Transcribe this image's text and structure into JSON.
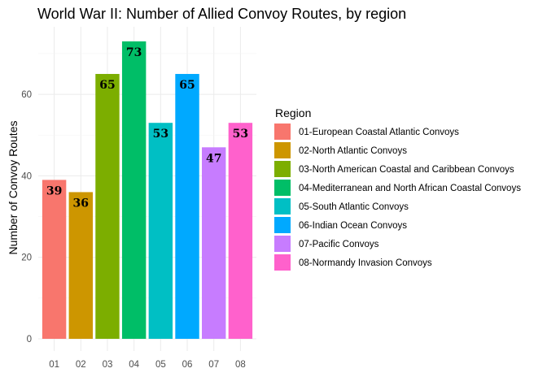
{
  "chart_data": {
    "type": "bar",
    "title": "World War II: Number of Allied Convoy Routes, by region",
    "xlabel": "",
    "ylabel": "Number of Convoy Routes",
    "categories": [
      "01",
      "02",
      "03",
      "04",
      "05",
      "06",
      "07",
      "08"
    ],
    "values": [
      39,
      36,
      65,
      73,
      53,
      65,
      47,
      53
    ],
    "ylim": [
      0,
      73
    ],
    "yticks": [
      0,
      20,
      40,
      60
    ],
    "grid": true,
    "legend": {
      "title": "Region",
      "placement": "right",
      "entries": [
        "01-European Coastal Atlantic Convoys",
        "02-North Atlantic Convoys",
        "03-North American Coastal and Caribbean Convoys",
        "04-Mediterranean and North African Coastal Convoys",
        "05-South Atlantic Convoys",
        "06-Indian Ocean Convoys",
        "07-Pacific Convoys",
        "08-Normandy Invasion Convoys"
      ]
    },
    "colors": [
      "#F8766D",
      "#CD9600",
      "#7CAE00",
      "#00BE67",
      "#00BFC4",
      "#00A9FF",
      "#C77CFF",
      "#FF61CC"
    ]
  }
}
